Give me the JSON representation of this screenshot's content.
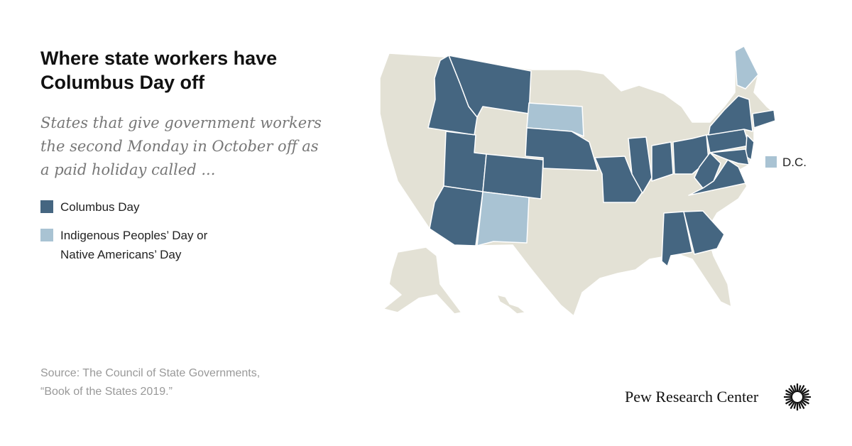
{
  "header": {
    "title_lines": [
      "Where state workers have",
      "Columbus Day off"
    ],
    "subtitle_lines": [
      "States that give government workers",
      "the second Monday in October off as",
      "a paid holiday called ..."
    ]
  },
  "legend": {
    "items": [
      {
        "label_lines": [
          "Columbus Day"
        ],
        "color": "#456681"
      },
      {
        "label_lines": [
          "Indigenous Peoples’ Day or",
          "Native Americans’ Day"
        ],
        "color": "#a9c3d3"
      }
    ]
  },
  "map": {
    "base_color": "#e3e1d5",
    "dc_label": "D.C."
  },
  "footer": {
    "source_lines": [
      "Source: The Council of State Governments,",
      "“Book of the States 2019.”"
    ],
    "logo": "Pew Research Center"
  }
}
